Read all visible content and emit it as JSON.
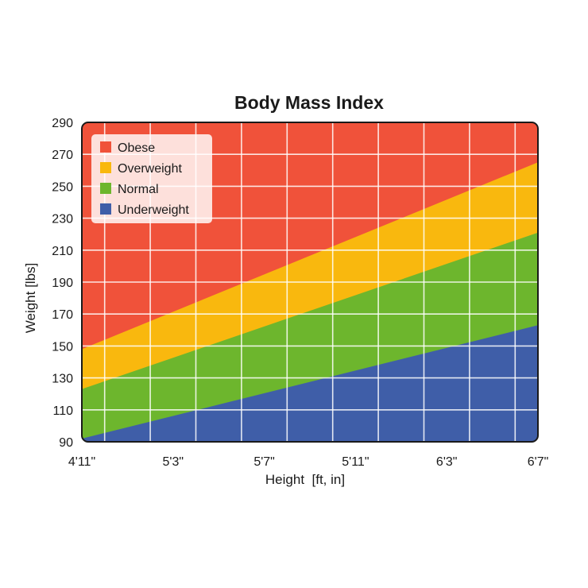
{
  "chart_data": {
    "type": "area",
    "title": "Body Mass Index",
    "xlabel": "Height  [ft, in]",
    "ylabel": "Weight [lbs]",
    "x_unit": "inches",
    "x_range": [
      59,
      79
    ],
    "x_ticks": [
      {
        "value": 59,
        "label": "4'11\""
      },
      {
        "value": 63,
        "label": "5'3\""
      },
      {
        "value": 67,
        "label": "5'7\""
      },
      {
        "value": 71,
        "label": "5'11\""
      },
      {
        "value": 75,
        "label": "6'3\""
      },
      {
        "value": 79,
        "label": "6'7\""
      }
    ],
    "ylim": [
      90,
      290
    ],
    "y_ticks": [
      90,
      110,
      130,
      150,
      170,
      190,
      210,
      230,
      250,
      270,
      290
    ],
    "grid": true,
    "legend_position": "top-left",
    "boundaries": [
      {
        "name": "Underweight",
        "x": [
          59,
          79
        ],
        "y": [
          92,
          163
        ]
      },
      {
        "name": "Normal",
        "x": [
          59,
          79
        ],
        "y": [
          123,
          221
        ]
      },
      {
        "name": "Overweight",
        "x": [
          59,
          79
        ],
        "y": [
          148,
          265
        ]
      }
    ],
    "series": [
      {
        "name": "Obese",
        "color": "#f0523a"
      },
      {
        "name": "Overweight",
        "color": "#f9b80e"
      },
      {
        "name": "Normal",
        "color": "#6db62d"
      },
      {
        "name": "Underweight",
        "color": "#3f5ea8"
      }
    ]
  }
}
